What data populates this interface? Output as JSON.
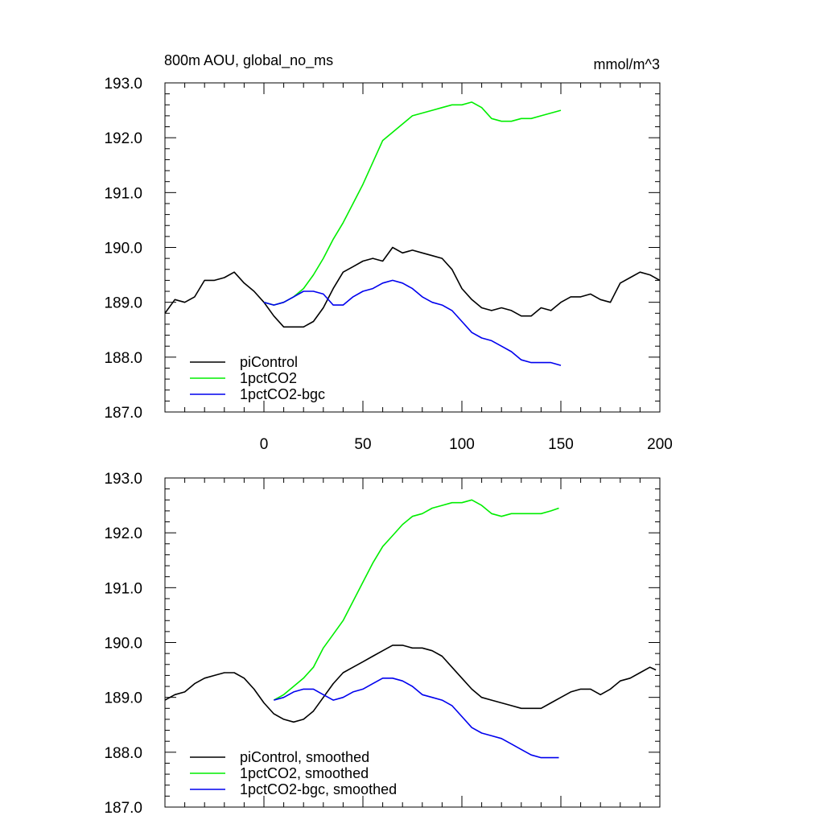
{
  "chart_data": [
    {
      "type": "line",
      "title": "800m AOU, global_no_ms",
      "units": "mmol/m^3",
      "xlim": [
        -50,
        200
      ],
      "ylim": [
        187,
        193
      ],
      "xticks": [
        0,
        50,
        100,
        150,
        200
      ],
      "yticks": [
        187,
        188,
        189,
        190,
        191,
        192,
        193
      ],
      "ytick_labels": [
        "187.0",
        "188.0",
        "189.0",
        "190.0",
        "191.0",
        "192.0",
        "193.0"
      ],
      "legend_position": "bottom-left",
      "grid": false,
      "series": [
        {
          "name": "piControl",
          "color": "#000000",
          "x": [
            -50,
            -45,
            -40,
            -35,
            -30,
            -25,
            -20,
            -15,
            -10,
            -5,
            0,
            5,
            10,
            15,
            20,
            25,
            30,
            35,
            40,
            45,
            50,
            55,
            60,
            65,
            70,
            75,
            80,
            85,
            90,
            95,
            100,
            105,
            110,
            115,
            120,
            125,
            130,
            135,
            140,
            145,
            150,
            155,
            160,
            165,
            170,
            175,
            180,
            185,
            190,
            195,
            200
          ],
          "y": [
            188.8,
            189.05,
            189.0,
            189.1,
            189.4,
            189.4,
            189.45,
            189.55,
            189.35,
            189.2,
            189.0,
            188.75,
            188.55,
            188.55,
            188.55,
            188.65,
            188.9,
            189.25,
            189.55,
            189.65,
            189.75,
            189.8,
            189.75,
            190.0,
            189.9,
            189.95,
            189.9,
            189.85,
            189.8,
            189.6,
            189.25,
            189.05,
            188.9,
            188.85,
            188.9,
            188.85,
            188.75,
            188.75,
            188.9,
            188.85,
            189.0,
            189.1,
            189.1,
            189.15,
            189.05,
            189.0,
            189.35,
            189.45,
            189.55,
            189.5,
            189.4
          ]
        },
        {
          "name": "1pctCO2",
          "color": "#00ee00",
          "x": [
            0,
            5,
            10,
            15,
            20,
            25,
            30,
            35,
            40,
            45,
            50,
            55,
            60,
            65,
            70,
            75,
            80,
            85,
            90,
            95,
            100,
            105,
            110,
            115,
            120,
            125,
            130,
            135,
            140,
            145,
            150
          ],
          "y": [
            189.0,
            188.95,
            189.0,
            189.1,
            189.25,
            189.5,
            189.8,
            190.15,
            190.45,
            190.8,
            191.15,
            191.55,
            191.95,
            192.1,
            192.25,
            192.4,
            192.45,
            192.5,
            192.55,
            192.6,
            192.6,
            192.65,
            192.55,
            192.35,
            192.3,
            192.3,
            192.35,
            192.35,
            192.4,
            192.45,
            192.5
          ]
        },
        {
          "name": "1pctCO2-bgc",
          "color": "#0000ee",
          "x": [
            0,
            5,
            10,
            15,
            20,
            25,
            30,
            35,
            40,
            45,
            50,
            55,
            60,
            65,
            70,
            75,
            80,
            85,
            90,
            95,
            100,
            105,
            110,
            115,
            120,
            125,
            130,
            135,
            140,
            145,
            150
          ],
          "y": [
            189.0,
            188.95,
            189.0,
            189.1,
            189.2,
            189.2,
            189.15,
            188.95,
            188.95,
            189.1,
            189.2,
            189.25,
            189.35,
            189.4,
            189.35,
            189.25,
            189.1,
            189.0,
            188.95,
            188.85,
            188.65,
            188.45,
            188.35,
            188.3,
            188.2,
            188.1,
            187.95,
            187.9,
            187.9,
            187.9,
            187.85
          ]
        }
      ]
    },
    {
      "type": "line",
      "xlim": [
        -50,
        200
      ],
      "ylim": [
        187,
        193
      ],
      "xticks": [
        0,
        50,
        100,
        150,
        200
      ],
      "yticks": [
        187,
        188,
        189,
        190,
        191,
        192,
        193
      ],
      "ytick_labels": [
        "187.0",
        "188.0",
        "189.0",
        "190.0",
        "191.0",
        "192.0",
        "193.0"
      ],
      "legend_position": "bottom-left",
      "grid": false,
      "series": [
        {
          "name": "piControl, smoothed",
          "color": "#000000",
          "x": [
            -50,
            -45,
            -40,
            -35,
            -30,
            -25,
            -20,
            -15,
            -10,
            -5,
            0,
            5,
            10,
            15,
            20,
            25,
            30,
            35,
            40,
            45,
            50,
            55,
            60,
            65,
            70,
            75,
            80,
            85,
            90,
            95,
            100,
            105,
            110,
            115,
            120,
            125,
            130,
            135,
            140,
            145,
            150,
            155,
            160,
            165,
            170,
            175,
            180,
            185,
            190,
            195,
            198
          ],
          "y": [
            188.95,
            189.05,
            189.1,
            189.25,
            189.35,
            189.4,
            189.45,
            189.45,
            189.35,
            189.15,
            188.9,
            188.7,
            188.6,
            188.55,
            188.6,
            188.75,
            189.0,
            189.25,
            189.45,
            189.55,
            189.65,
            189.75,
            189.85,
            189.95,
            189.95,
            189.9,
            189.9,
            189.85,
            189.75,
            189.55,
            189.35,
            189.15,
            189.0,
            188.95,
            188.9,
            188.85,
            188.8,
            188.8,
            188.8,
            188.9,
            189.0,
            189.1,
            189.15,
            189.15,
            189.05,
            189.15,
            189.3,
            189.35,
            189.45,
            189.55,
            189.5
          ]
        },
        {
          "name": "1pctCO2, smoothed",
          "color": "#00ee00",
          "x": [
            5,
            10,
            15,
            20,
            25,
            30,
            35,
            40,
            45,
            50,
            55,
            60,
            65,
            70,
            75,
            80,
            85,
            90,
            95,
            100,
            105,
            110,
            115,
            120,
            125,
            130,
            135,
            140,
            145,
            149
          ],
          "y": [
            188.95,
            189.05,
            189.2,
            189.35,
            189.55,
            189.9,
            190.15,
            190.4,
            190.75,
            191.1,
            191.45,
            191.75,
            191.95,
            192.15,
            192.3,
            192.35,
            192.45,
            192.5,
            192.55,
            192.55,
            192.6,
            192.5,
            192.35,
            192.3,
            192.35,
            192.35,
            192.35,
            192.35,
            192.4,
            192.45
          ]
        },
        {
          "name": "1pctCO2-bgc, smoothed",
          "color": "#0000ee",
          "x": [
            5,
            10,
            15,
            20,
            25,
            30,
            35,
            40,
            45,
            50,
            55,
            60,
            65,
            70,
            75,
            80,
            85,
            90,
            95,
            100,
            105,
            110,
            115,
            120,
            125,
            130,
            135,
            140,
            145,
            149
          ],
          "y": [
            188.95,
            189.0,
            189.1,
            189.15,
            189.15,
            189.05,
            188.95,
            189.0,
            189.1,
            189.15,
            189.25,
            189.35,
            189.35,
            189.3,
            189.2,
            189.05,
            189.0,
            188.95,
            188.85,
            188.65,
            188.45,
            188.35,
            188.3,
            188.25,
            188.15,
            188.05,
            187.95,
            187.9,
            187.9,
            187.9
          ]
        }
      ]
    }
  ]
}
